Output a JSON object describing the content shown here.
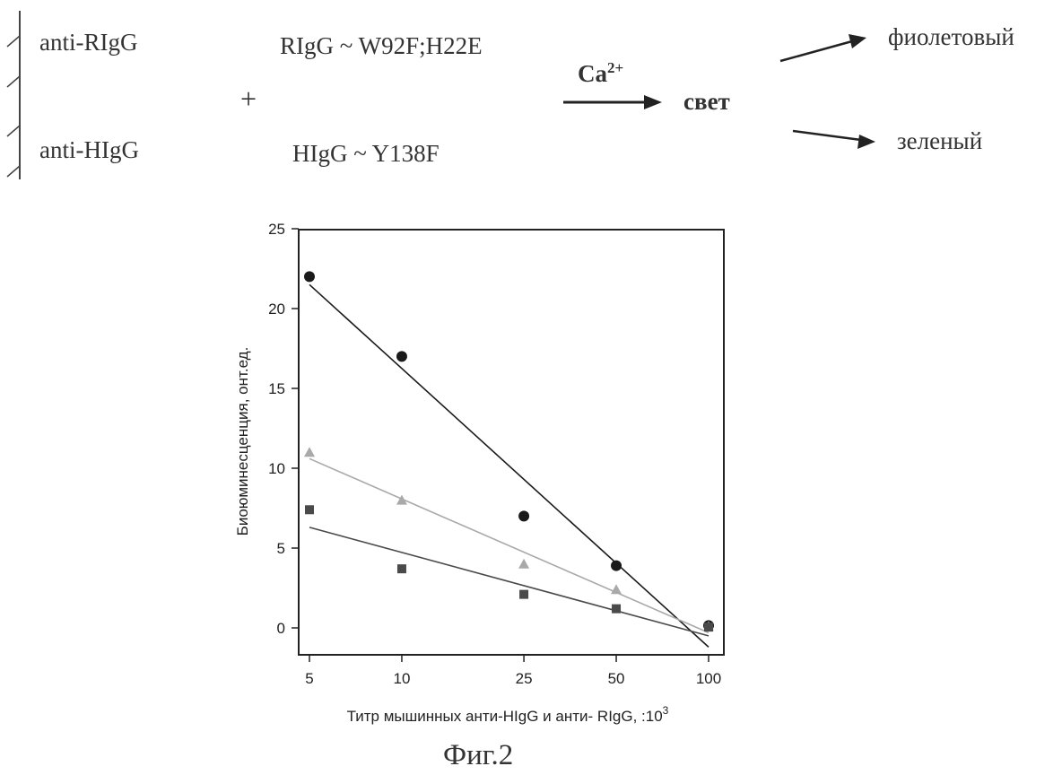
{
  "scheme": {
    "left_top": "anti-RIgG",
    "left_bottom": "anti-HIgG",
    "plus": "+",
    "right_top": "RIgG ~ W92F;H22E",
    "right_bottom": "HIgG ~ Y138F",
    "catalyst_base": "Ca",
    "catalyst_sup": "2+",
    "product": "свет",
    "out_top": "фиолетовый",
    "out_bottom": "зеленый"
  },
  "chart_data": {
    "type": "scatter",
    "xscale": "log",
    "x": [
      5,
      10,
      25,
      50,
      100
    ],
    "x_tick_labels": [
      "5",
      "10",
      "25",
      "50",
      "100"
    ],
    "ylim": [
      0,
      25
    ],
    "y_ticks": [
      0,
      5,
      10,
      15,
      20,
      25
    ],
    "xlabel": "Титр мышинных анти-HIgG и анти- RIgG, :10",
    "xlabel_sup": "3",
    "ylabel": "Биоюминесценция, онт.ед.",
    "grid": false,
    "series": [
      {
        "marker": "circle",
        "color": "#1a1a1a",
        "values": [
          22,
          17,
          7,
          3.9,
          0.15
        ],
        "trend": [
          21.5,
          -1.2
        ]
      },
      {
        "marker": "triangle",
        "color": "#a9a9a9",
        "values": [
          11,
          8,
          4,
          2.4,
          0.1
        ],
        "trend": [
          10.6,
          -0.3
        ]
      },
      {
        "marker": "square",
        "color": "#4a4a4a",
        "values": [
          7.4,
          3.7,
          2.1,
          1.2,
          0.05
        ],
        "trend": [
          6.3,
          -0.5
        ]
      }
    ]
  },
  "figure_label": "Фиг.2"
}
